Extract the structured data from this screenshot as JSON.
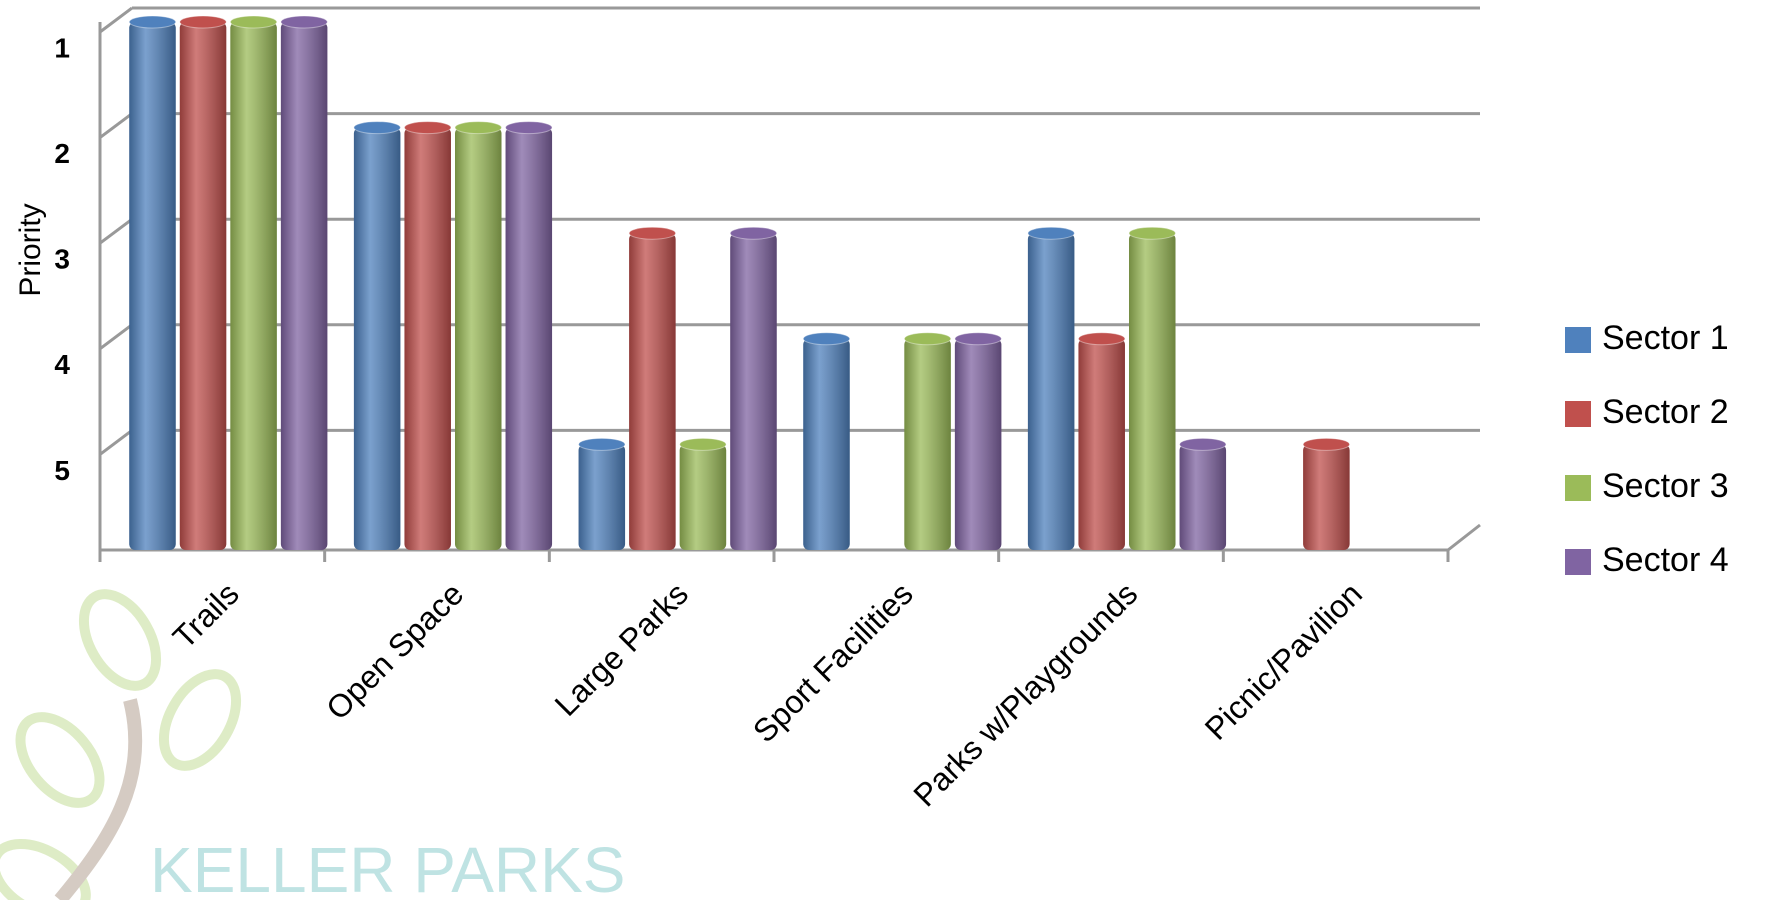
{
  "chart_data": {
    "type": "bar",
    "y_label": "Priority",
    "watermark": "KELLER PARKS",
    "categories": [
      "Trails",
      "Open Space",
      "Large Parks",
      "Sport Facilities",
      "Parks w/Playgrounds",
      "Picnic/Pavilion"
    ],
    "series": [
      {
        "name": "Sector 1",
        "color": "#4f81bd",
        "values": [
          1,
          2,
          5,
          4,
          3,
          null
        ]
      },
      {
        "name": "Sector 2",
        "color": "#c0504d",
        "values": [
          1,
          2,
          3,
          null,
          4,
          5
        ]
      },
      {
        "name": "Sector 3",
        "color": "#9bbb59",
        "values": [
          1,
          2,
          5,
          4,
          3,
          null
        ]
      },
      {
        "name": "Sector 4",
        "color": "#8064a2",
        "values": [
          1,
          2,
          3,
          4,
          5,
          null
        ]
      }
    ],
    "ylim": [
      6,
      1
    ],
    "yticks": [
      1,
      2,
      3,
      4,
      5
    ],
    "grid": true,
    "legend": "right"
  }
}
